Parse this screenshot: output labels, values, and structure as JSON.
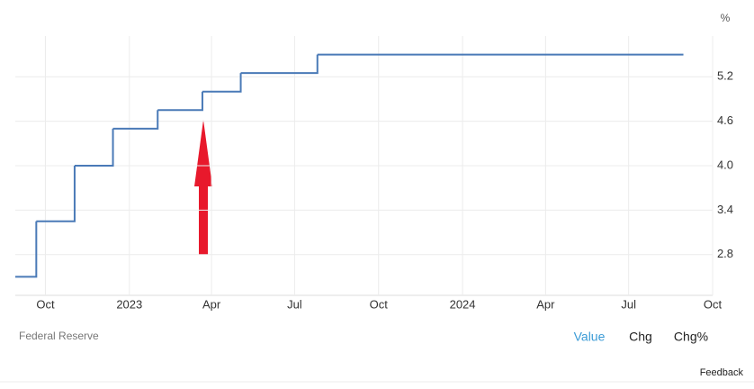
{
  "chart_data": {
    "type": "line",
    "step": "post",
    "color": "#4a7ab7",
    "grid": true,
    "y_unit": "%",
    "x": [
      "2022-08-29",
      "2022-09-21",
      "2022-11-02",
      "2022-12-14",
      "2023-02-01",
      "2023-03-22",
      "2023-05-03",
      "2023-07-26",
      "2024-08-30"
    ],
    "values": [
      2.5,
      3.25,
      4,
      4.5,
      4.75,
      5,
      5.25,
      5.5,
      5.5
    ],
    "xlim": [
      "2022-08-29",
      "2024-10-01"
    ],
    "xticks": [
      {
        "value": "2022-10-01",
        "label": "Oct"
      },
      {
        "value": "2023-01-01",
        "label": "2023"
      },
      {
        "value": "2023-04-01",
        "label": "Apr"
      },
      {
        "value": "2023-07-01",
        "label": "Jul"
      },
      {
        "value": "2023-10-01",
        "label": "Oct"
      },
      {
        "value": "2024-01-01",
        "label": "2024"
      },
      {
        "value": "2024-04-01",
        "label": "Apr"
      },
      {
        "value": "2024-07-01",
        "label": "Jul"
      },
      {
        "value": "2024-10-01",
        "label": "Oct"
      }
    ],
    "ylim": [
      2.25,
      5.75
    ],
    "yticks": [
      2.8,
      3.4,
      4.0,
      4.6,
      5.2
    ],
    "source": "Federal Reserve",
    "controls": [
      "Value",
      "Chg",
      "Chg%"
    ],
    "feedback": "Feedback"
  }
}
